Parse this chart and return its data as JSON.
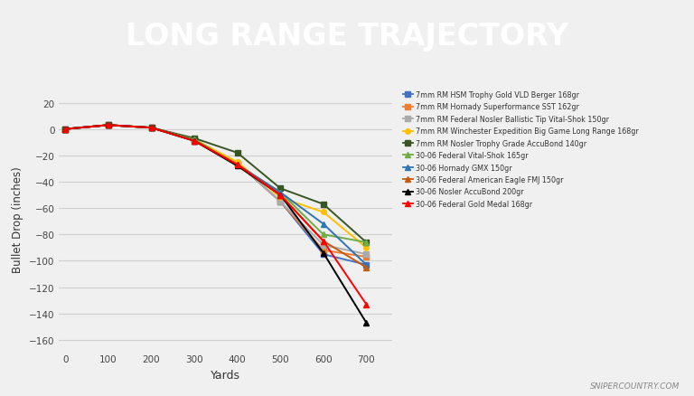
{
  "title": "LONG RANGE TRAJECTORY",
  "title_bg_color": "#585858",
  "title_text_color": "#ffffff",
  "accent_bar_color": "#e07070",
  "plot_bg_color": "#f0f0f0",
  "xlabel": "Yards",
  "ylabel": "Bullet Drop (inches)",
  "xlim": [
    -15,
    760
  ],
  "ylim": [
    -168,
    32
  ],
  "yticks": [
    20,
    0,
    -20,
    -40,
    -60,
    -80,
    -100,
    -120,
    -140,
    -160
  ],
  "xticks": [
    0,
    100,
    200,
    300,
    400,
    500,
    600,
    700
  ],
  "grid_color": "#d0d0d0",
  "footer_text": "SNIPERCOUNTRY.COM",
  "series": [
    {
      "label": "7mm RM HSM Trophy Gold VLD Berger 168gr",
      "color": "#4472c4",
      "marker": "s",
      "marker_size": 4,
      "data": [
        0,
        3,
        1,
        -8,
        -26,
        -55,
        -95,
        -103
      ]
    },
    {
      "label": "7mm RM Hornady Superformance SST 162gr",
      "color": "#ed7d31",
      "marker": "s",
      "marker_size": 4,
      "data": [
        0,
        3,
        1,
        -8,
        -26,
        -55,
        -92,
        -97
      ]
    },
    {
      "label": "7mm RM Federal Nosler Ballistic Tip Vital-Shok 150gr",
      "color": "#aaaaaa",
      "marker": "s",
      "marker_size": 4,
      "data": [
        0,
        3,
        1,
        -8,
        -26,
        -55,
        -88,
        -95
      ]
    },
    {
      "label": "7mm RM Winchester Expedition Big Game Long Range 168gr",
      "color": "#ffc000",
      "marker": "o",
      "marker_size": 4,
      "data": [
        0,
        3,
        1,
        -8,
        -25,
        -52,
        -63,
        -90
      ]
    },
    {
      "label": "7mm RM Nosler Trophy Grade AccuBond 140gr",
      "color": "#375623",
      "marker": "s",
      "marker_size": 4,
      "data": [
        0,
        3,
        1,
        -7,
        -18,
        -45,
        -57,
        -86
      ]
    },
    {
      "label": "30-06 Federal Vital-Shok 165gr",
      "color": "#70ad47",
      "marker": "^",
      "marker_size": 5,
      "data": [
        0,
        3,
        1,
        -8,
        -27,
        -48,
        -80,
        -86
      ]
    },
    {
      "label": "30-06 Hornady GMX 150gr",
      "color": "#2e75b6",
      "marker": "^",
      "marker_size": 5,
      "data": [
        0,
        3,
        1,
        -9,
        -27,
        -48,
        -72,
        -103
      ]
    },
    {
      "label": "30-06 Federal American Eagle FMJ 150gr",
      "color": "#c55a11",
      "marker": "^",
      "marker_size": 5,
      "data": [
        0,
        3,
        1,
        -9,
        -27,
        -50,
        -85,
        -105
      ]
    },
    {
      "label": "30-06 Nosler AccuBond 200gr",
      "color": "#000000",
      "marker": "^",
      "marker_size": 5,
      "data": [
        0,
        3,
        1,
        -9,
        -28,
        -50,
        -94,
        -147
      ]
    },
    {
      "label": "30-06 Federal Gold Medal 168gr",
      "color": "#ff0000",
      "marker": "^",
      "marker_size": 5,
      "data": [
        0,
        3,
        1,
        -9,
        -27,
        -50,
        -85,
        -133
      ]
    }
  ]
}
